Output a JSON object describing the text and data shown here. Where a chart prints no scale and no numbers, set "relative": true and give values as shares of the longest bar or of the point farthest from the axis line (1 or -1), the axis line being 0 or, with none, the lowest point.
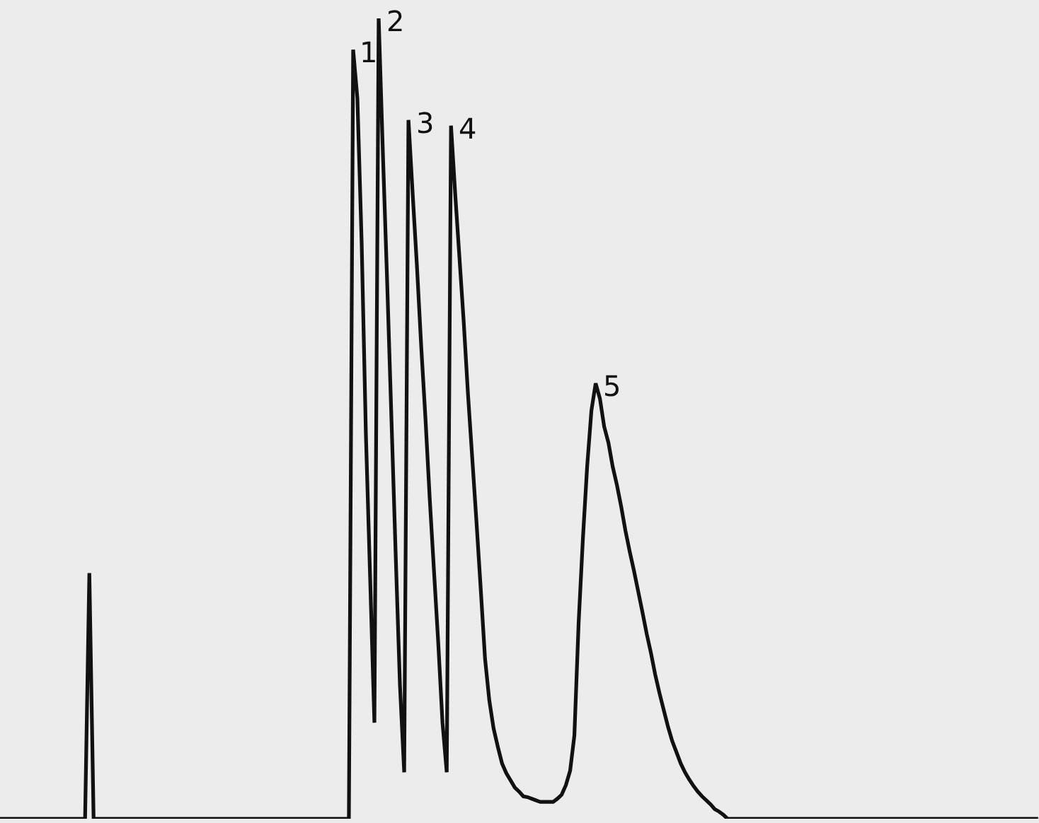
{
  "chart_data": {
    "type": "line",
    "relative": true,
    "categories": [
      null,
      null,
      null,
      null,
      null,
      null,
      null,
      null,
      null,
      null,
      null,
      null,
      null,
      null,
      null,
      null,
      null,
      null,
      null,
      null,
      null,
      null,
      null,
      null,
      null,
      null,
      null,
      null,
      null,
      null,
      null,
      null,
      null,
      null,
      null,
      null,
      null,
      null,
      null,
      null,
      null,
      null,
      null,
      null,
      null,
      null,
      null,
      null,
      null,
      null,
      null,
      null,
      null,
      null,
      null,
      null,
      null,
      null,
      null,
      null,
      null,
      null,
      null,
      null,
      null,
      null,
      null,
      null,
      null,
      null,
      null,
      null,
      null,
      null,
      null,
      null,
      null,
      null,
      null,
      null,
      null,
      null,
      null,
      null,
      null,
      null,
      null,
      null,
      null,
      null,
      null,
      null,
      null,
      null,
      null,
      null,
      null,
      null,
      null,
      null,
      null,
      null,
      null,
      null,
      null,
      null,
      null,
      null,
      null,
      null,
      null,
      null,
      null,
      null,
      null,
      null,
      null,
      null,
      null,
      null,
      null,
      null,
      null,
      null,
      null,
      null,
      null,
      null,
      null,
      null,
      null,
      null,
      null,
      null,
      null,
      null,
      null,
      null,
      null,
      null,
      null,
      null,
      null,
      null,
      null,
      null,
      null,
      null,
      null,
      null,
      null,
      null,
      null,
      null,
      null,
      null,
      null,
      null,
      null,
      null,
      null,
      null,
      null,
      null,
      null,
      null,
      null,
      null,
      null,
      null,
      null,
      null,
      null,
      null,
      null,
      null,
      null,
      null,
      null,
      null,
      null,
      null,
      null,
      null,
      null,
      null,
      null,
      null,
      null,
      null,
      null,
      null,
      null,
      null,
      null,
      null,
      null,
      null,
      null,
      null,
      null,
      null,
      null,
      null,
      null,
      null,
      null,
      null,
      null,
      null,
      null,
      null,
      null,
      null,
      null,
      null,
      null,
      null,
      null,
      null,
      null,
      null,
      null,
      null,
      null,
      null,
      null,
      null,
      null,
      null,
      null,
      null,
      null,
      null,
      null,
      null,
      null,
      null,
      null,
      null,
      null,
      null,
      null,
      null,
      null
    ],
    "series": [
      {
        "color": "#111111",
        "values": [
          0,
          0,
          0,
          0,
          0,
          0,
          0,
          0,
          0,
          0,
          0,
          0,
          0,
          0,
          0,
          0,
          0,
          0,
          0,
          0,
          0,
          0.307,
          0,
          0,
          0,
          0,
          0,
          0,
          0,
          0,
          0,
          0,
          0,
          0,
          0,
          0,
          0,
          0,
          0,
          0,
          0,
          0,
          0,
          0,
          0,
          0,
          0,
          0,
          0,
          0,
          0,
          0,
          0,
          0,
          0,
          0,
          0,
          0,
          0,
          0,
          0,
          0,
          0,
          0,
          0,
          0,
          0,
          0,
          0,
          0,
          0,
          0,
          0,
          0,
          0,
          0,
          0,
          0,
          0,
          0,
          0,
          0,
          0,
          0.961,
          0.9,
          0.72,
          0.48,
          0.3,
          0.12,
          1.0,
          0.83,
          0.67,
          0.5,
          0.33,
          0.167,
          0.058,
          0.873,
          0.78,
          0.69,
          0.59,
          0.5,
          0.4,
          0.31,
          0.22,
          0.12,
          0.058,
          0.866,
          0.78,
          0.7,
          0.62,
          0.53,
          0.45,
          0.37,
          0.286,
          0.2,
          0.148,
          0.113,
          0.09,
          0.069,
          0.057,
          0.048,
          0.039,
          0.034,
          0.028,
          0.027,
          0.025,
          0.023,
          0.021,
          0.021,
          0.021,
          0.021,
          0.025,
          0.03,
          0.042,
          0.06,
          0.104,
          0.245,
          0.35,
          0.44,
          0.51,
          0.544,
          0.525,
          0.49,
          0.47,
          0.44,
          0.417,
          0.39,
          0.36,
          0.334,
          0.31,
          0.284,
          0.258,
          0.231,
          0.207,
          0.18,
          0.157,
          0.136,
          0.115,
          0.097,
          0.083,
          0.069,
          0.058,
          0.049,
          0.041,
          0.034,
          0.028,
          0.023,
          0.018,
          0.012,
          0.009,
          0.005,
          0,
          0,
          0,
          0,
          0,
          0,
          0,
          0,
          0,
          0,
          0,
          0,
          0,
          0,
          0,
          0,
          0,
          0,
          0,
          0,
          0,
          0,
          0,
          0,
          0,
          0,
          0,
          0,
          0,
          0,
          0,
          0,
          0,
          0,
          0,
          0,
          0,
          0,
          0,
          0,
          0,
          0,
          0,
          0,
          0,
          0,
          0,
          0,
          0,
          0,
          0,
          0,
          0,
          0,
          0,
          0,
          0,
          0,
          0,
          0,
          0,
          0,
          0,
          0,
          0,
          0,
          0,
          0,
          0,
          0,
          0,
          0,
          0,
          0
        ]
      }
    ],
    "annotations": [
      "1",
      "2",
      "3",
      "4",
      "5"
    ]
  }
}
